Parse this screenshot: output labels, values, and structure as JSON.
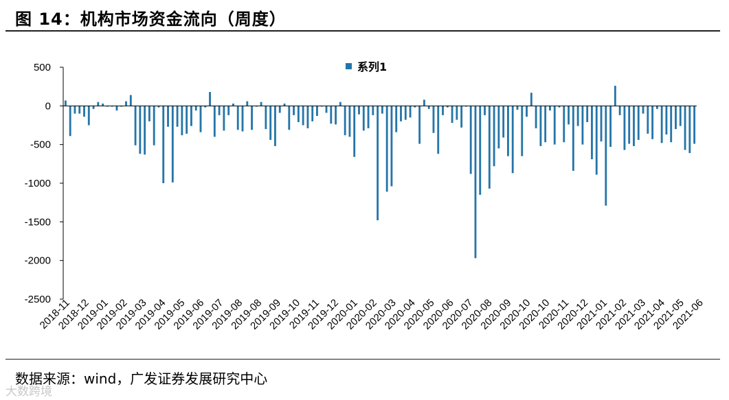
{
  "figure": {
    "title": "图 14：机构市场资金流向（周度）",
    "source": "数据来源：wind，广发证券发展研究中心",
    "watermark": "大数跨境"
  },
  "colors": {
    "bar": "#2575a8",
    "axis": "#000000"
  },
  "chart_data": {
    "type": "bar",
    "title": "",
    "xlabel": "",
    "ylabel": "",
    "ylim": [
      -2500,
      500
    ],
    "yticks": [
      500,
      0,
      -500,
      -1000,
      -1500,
      -2000,
      -2500
    ],
    "grid": false,
    "legend": "top-center",
    "x_tick_labels": [
      "2018-11",
      "2018-12",
      "2019-01",
      "2019-02",
      "2019-03",
      "2019-04",
      "2019-05",
      "2019-06",
      "2019-07",
      "2019-08",
      "2019-08",
      "2019-09",
      "2019-10",
      "2019-11",
      "2019-12",
      "2020-01",
      "2020-02",
      "2020-03",
      "2020-04",
      "2020-05",
      "2020-06",
      "2020-07",
      "2020-08",
      "2020-09",
      "2020-10",
      "2020-10",
      "2020-11",
      "2020-12",
      "2021-01",
      "2021-02",
      "2021-03",
      "2021-04",
      "2021-05",
      "2021-06"
    ],
    "series": [
      {
        "name": "系列1",
        "values": [
          70,
          -390,
          -100,
          -100,
          -140,
          -250,
          -40,
          50,
          30,
          -10,
          -10,
          -60,
          -10,
          60,
          140,
          -510,
          -620,
          -630,
          -200,
          -510,
          -20,
          -1000,
          -270,
          -990,
          -270,
          -380,
          -360,
          -260,
          -60,
          -340,
          -20,
          180,
          -400,
          -120,
          -320,
          -120,
          30,
          -310,
          -330,
          60,
          -310,
          -10,
          50,
          -300,
          -440,
          -520,
          -90,
          30,
          -310,
          -120,
          -210,
          -250,
          -290,
          -200,
          -130,
          -10,
          -90,
          -230,
          -240,
          50,
          -380,
          -400,
          -660,
          -110,
          -320,
          -290,
          -120,
          -1480,
          -100,
          -1110,
          -1040,
          -340,
          -200,
          -180,
          -150,
          -20,
          -490,
          80,
          -40,
          -350,
          -620,
          -120,
          -20,
          -220,
          -180,
          -280,
          -10,
          -880,
          -1970,
          -1150,
          -120,
          -1070,
          -780,
          -550,
          -410,
          -650,
          -870,
          -50,
          -650,
          -140,
          170,
          -290,
          -520,
          -470,
          -60,
          -500,
          -20,
          -470,
          -240,
          -840,
          -260,
          -500,
          -210,
          -690,
          -890,
          -460,
          -1290,
          -530,
          260,
          -120,
          -570,
          -490,
          -520,
          -440,
          -100,
          -360,
          -430,
          -40,
          -480,
          -370,
          -470,
          -300,
          -260,
          -570,
          -610,
          -490
        ]
      }
    ]
  }
}
